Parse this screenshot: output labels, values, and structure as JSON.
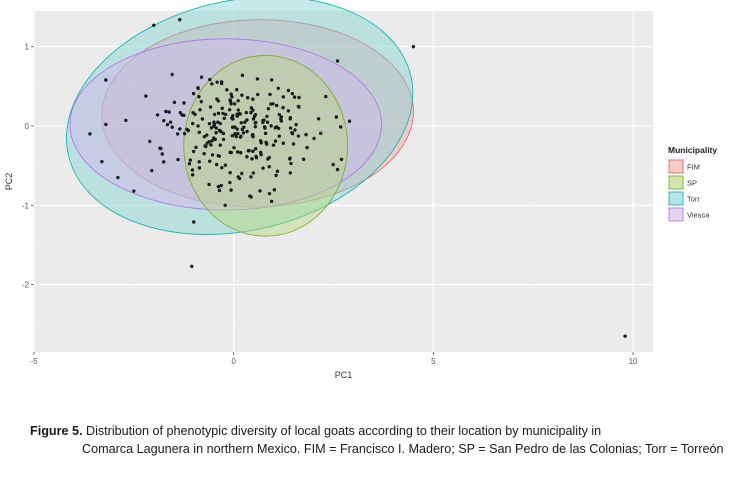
{
  "chart_data": {
    "type": "scatter",
    "title": "",
    "xlabel": "PC1",
    "ylabel": "PC2",
    "xlim": [
      -5,
      10.5
    ],
    "ylim": [
      -2.85,
      1.45
    ],
    "x_ticks": [
      -5,
      0,
      5,
      10
    ],
    "y_ticks": [
      1,
      0,
      -1,
      -2
    ],
    "x_tick_labels": [
      "-5",
      "0",
      "5",
      "10"
    ],
    "y_tick_labels": [
      "1",
      "0",
      "-1",
      "-2"
    ],
    "grid": true,
    "legend": {
      "title": "Municipality",
      "placement": "right",
      "entries": [
        {
          "label": "FIM",
          "fill": "#f4a7a7",
          "stroke": "#e46a6a"
        },
        {
          "label": "SP",
          "fill": "#b7d67a",
          "stroke": "#7cae2c"
        },
        {
          "label": "Torr",
          "fill": "#7fd3d1",
          "stroke": "#1fb5b0"
        },
        {
          "label": "Viesca",
          "fill": "#d4b3ef",
          "stroke": "#b27ae6"
        }
      ]
    },
    "ellipses": [
      {
        "group": "FIM",
        "cx": 0.6,
        "cy": 0.16,
        "rx": 3.9,
        "ry": 1.18,
        "angle_deg": -1
      },
      {
        "group": "Torr",
        "cx": 0.15,
        "cy": 0.13,
        "rx": 4.4,
        "ry": 1.45,
        "angle_deg": -13
      },
      {
        "group": "Viesca",
        "cx": -0.2,
        "cy": 0.02,
        "rx": 3.9,
        "ry": 1.08,
        "angle_deg": 0
      },
      {
        "group": "SP",
        "cx": 0.8,
        "cy": -0.25,
        "rx": 2.05,
        "ry": 1.14,
        "angle_deg": 0
      }
    ],
    "outlier_points": [
      [
        -2.0,
        1.27
      ],
      [
        -1.35,
        1.34
      ],
      [
        4.5,
        1.0
      ],
      [
        -3.2,
        0.58
      ],
      [
        9.8,
        -2.65
      ],
      [
        -1.05,
        -1.77
      ],
      [
        -1.0,
        -1.21
      ],
      [
        -2.5,
        -0.82
      ],
      [
        -3.6,
        -0.1
      ],
      [
        -3.2,
        0.02
      ],
      [
        -2.7,
        0.07
      ],
      [
        2.9,
        0.06
      ],
      [
        2.7,
        -0.42
      ],
      [
        2.6,
        -0.55
      ],
      [
        0.95,
        -0.95
      ],
      [
        -2.9,
        -0.65
      ],
      [
        2.6,
        0.82
      ],
      [
        -3.3,
        -0.45
      ]
    ],
    "cluster_points_count": 250,
    "cluster_center": [
      0.1,
      -0.1
    ],
    "point_color": "#1a1a1a"
  },
  "caption": {
    "label": "Figure 5.",
    "text_line1": "Distribution of phenotypic diversity of local goats according to their location by municipality in",
    "text_line2": "Comarca Lagunera in northern Mexico. FIM = Francisco I. Madero; SP = San Pedro de las Colonias; Torr = Torreón"
  },
  "colors": {
    "panel_bg": "#ebebeb",
    "grid_major": "#ffffff",
    "grid_minor": "#f4f4f4"
  }
}
